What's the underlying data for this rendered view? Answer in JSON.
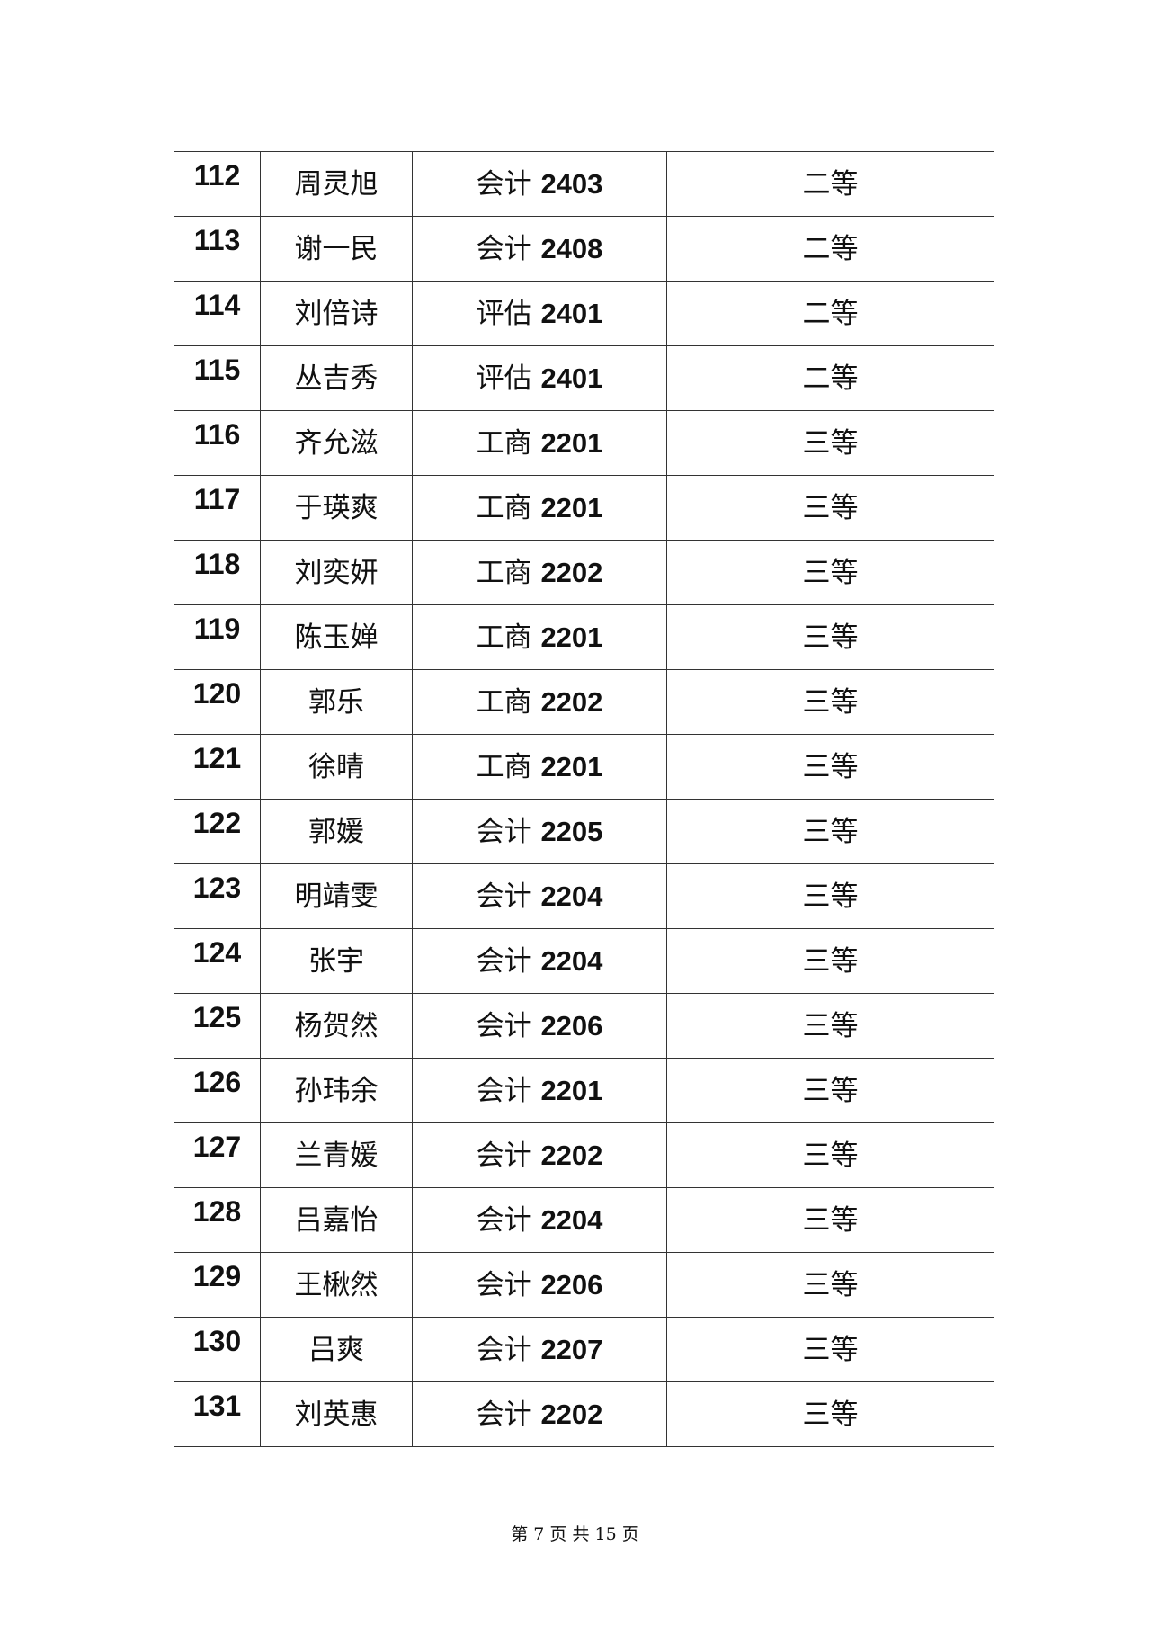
{
  "rows": [
    {
      "no": "112",
      "name": "周灵旭",
      "major": "会计",
      "cls": "2403",
      "grade": "二等"
    },
    {
      "no": "113",
      "name": "谢一民",
      "major": "会计",
      "cls": "2408",
      "grade": "二等"
    },
    {
      "no": "114",
      "name": "刘倍诗",
      "major": "评估",
      "cls": "2401",
      "grade": "二等"
    },
    {
      "no": "115",
      "name": "丛吉秀",
      "major": "评估",
      "cls": "2401",
      "grade": "二等"
    },
    {
      "no": "116",
      "name": "齐允滋",
      "major": "工商",
      "cls": "2201",
      "grade": "三等"
    },
    {
      "no": "117",
      "name": "于瑛爽",
      "major": "工商",
      "cls": "2201",
      "grade": "三等"
    },
    {
      "no": "118",
      "name": "刘奕妍",
      "major": "工商",
      "cls": "2202",
      "grade": "三等"
    },
    {
      "no": "119",
      "name": "陈玉婵",
      "major": "工商",
      "cls": "2201",
      "grade": "三等"
    },
    {
      "no": "120",
      "name": "郭乐",
      "major": "工商",
      "cls": "2202",
      "grade": "三等"
    },
    {
      "no": "121",
      "name": "徐晴",
      "major": "工商",
      "cls": "2201",
      "grade": "三等"
    },
    {
      "no": "122",
      "name": "郭媛",
      "major": "会计",
      "cls": "2205",
      "grade": "三等"
    },
    {
      "no": "123",
      "name": "明靖雯",
      "major": "会计",
      "cls": "2204",
      "grade": "三等"
    },
    {
      "no": "124",
      "name": "张宇",
      "major": "会计",
      "cls": "2204",
      "grade": "三等"
    },
    {
      "no": "125",
      "name": "杨贺然",
      "major": "会计",
      "cls": "2206",
      "grade": "三等"
    },
    {
      "no": "126",
      "name": "孙玮余",
      "major": "会计",
      "cls": "2201",
      "grade": "三等"
    },
    {
      "no": "127",
      "name": "兰青媛",
      "major": "会计",
      "cls": "2202",
      "grade": "三等"
    },
    {
      "no": "128",
      "name": "吕嘉怡",
      "major": "会计",
      "cls": "2204",
      "grade": "三等"
    },
    {
      "no": "129",
      "name": "王楸然",
      "major": "会计",
      "cls": "2206",
      "grade": "三等"
    },
    {
      "no": "130",
      "name": "吕爽",
      "major": "会计",
      "cls": "2207",
      "grade": "三等"
    },
    {
      "no": "131",
      "name": "刘英惠",
      "major": "会计",
      "cls": "2202",
      "grade": "三等"
    }
  ],
  "footer": "第 7 页 共 15 页"
}
